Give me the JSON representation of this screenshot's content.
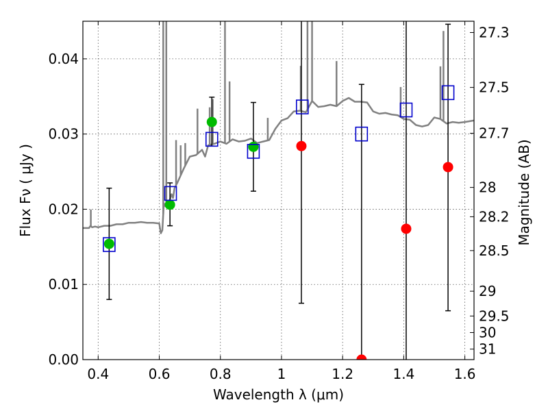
{
  "chart_data": {
    "type": "scatter",
    "title": "",
    "xlabel": "Wavelength  λ (μm)",
    "ylabel": "Flux  Fν  ( μJy )",
    "ylabel_right": "Magnitude (AB)",
    "xlim": [
      0.35,
      1.63
    ],
    "ylim": [
      0.0,
      0.045
    ],
    "grid": true,
    "x_ticks": [
      0.4,
      0.6,
      0.8,
      1.0,
      1.2,
      1.4,
      1.6
    ],
    "x_tick_labels": [
      "0.4",
      "0.6",
      "0.8",
      "1",
      "1.2",
      "1.4",
      "1.6"
    ],
    "y_ticks": [
      0.0,
      0.01,
      0.02,
      0.03,
      0.04
    ],
    "y_tick_labels": [
      "0.00",
      "0.01",
      "0.02",
      "0.03",
      "0.04"
    ],
    "right_ticks": [
      {
        "mag": "27.3",
        "flux": 0.0435
      },
      {
        "mag": "27.5",
        "flux": 0.0362
      },
      {
        "mag": "27.7",
        "flux": 0.0301
      },
      {
        "mag": "28",
        "flux": 0.0229
      },
      {
        "mag": "28.2",
        "flux": 0.019
      },
      {
        "mag": "28.5",
        "flux": 0.0145
      },
      {
        "mag": "29",
        "flux": 0.0091
      },
      {
        "mag": "29.5",
        "flux": 0.0058
      },
      {
        "mag": "30",
        "flux": 0.0036
      },
      {
        "mag": "31",
        "flux": 0.0014
      }
    ],
    "series": [
      {
        "kind": "line",
        "color": "#808080",
        "x": [
          0.35,
          0.37,
          0.375,
          0.38,
          0.39,
          0.4,
          0.42,
          0.44,
          0.46,
          0.48,
          0.5,
          0.52,
          0.54,
          0.56,
          0.58,
          0.6,
          0.605,
          0.61,
          0.615,
          0.62,
          0.63,
          0.64,
          0.645,
          0.65,
          0.66,
          0.68,
          0.7,
          0.72,
          0.74,
          0.75,
          0.76,
          0.78,
          0.8,
          0.82,
          0.84,
          0.86,
          0.88,
          0.9,
          0.92,
          0.94,
          0.96,
          0.98,
          1.0,
          1.02,
          1.04,
          1.06,
          1.08,
          1.1,
          1.12,
          1.14,
          1.16,
          1.18,
          1.2,
          1.22,
          1.24,
          1.26,
          1.28,
          1.3,
          1.32,
          1.34,
          1.36,
          1.38,
          1.4,
          1.42,
          1.44,
          1.46,
          1.48,
          1.5,
          1.52,
          1.54,
          1.56,
          1.58,
          1.6,
          1.63
        ],
        "y": [
          0.0175,
          0.0175,
          0.0178,
          0.0176,
          0.0177,
          0.0176,
          0.0178,
          0.0178,
          0.018,
          0.018,
          0.0182,
          0.0182,
          0.0183,
          0.0182,
          0.0182,
          0.0181,
          0.0168,
          0.0172,
          0.0208,
          0.0204,
          0.0206,
          0.022,
          0.0215,
          0.0228,
          0.0236,
          0.0254,
          0.027,
          0.0272,
          0.0279,
          0.027,
          0.0285,
          0.0287,
          0.029,
          0.0287,
          0.0293,
          0.029,
          0.0291,
          0.0294,
          0.0288,
          0.029,
          0.0292,
          0.0307,
          0.0318,
          0.0321,
          0.033,
          0.0331,
          0.0329,
          0.0344,
          0.0336,
          0.0337,
          0.0339,
          0.0337,
          0.0344,
          0.0348,
          0.0343,
          0.0343,
          0.0342,
          0.033,
          0.0327,
          0.0328,
          0.0326,
          0.0325,
          0.032,
          0.0319,
          0.0312,
          0.031,
          0.0312,
          0.0322,
          0.032,
          0.0314,
          0.0316,
          0.0315,
          0.0316,
          0.0318
        ]
      },
      {
        "kind": "line_spikes",
        "color": "#808080",
        "spikes": [
          [
            0.376,
            0.0022
          ],
          [
            0.613,
            0.046
          ],
          [
            0.623,
            0.046
          ],
          [
            0.655,
            0.006
          ],
          [
            0.67,
            0.004
          ],
          [
            0.685,
            0.003
          ],
          [
            0.725,
            0.006
          ],
          [
            0.765,
            0.005
          ],
          [
            0.775,
            0.006
          ],
          [
            0.815,
            0.046
          ],
          [
            0.83,
            0.008
          ],
          [
            0.955,
            0.003
          ],
          [
            1.063,
            0.006
          ],
          [
            1.085,
            0.012
          ],
          [
            1.1,
            0.012
          ],
          [
            1.18,
            0.006
          ],
          [
            1.39,
            0.004
          ],
          [
            1.52,
            0.007
          ],
          [
            1.53,
            0.012
          ]
        ]
      },
      {
        "kind": "errorbar",
        "color": "#000000",
        "x": [
          0.436,
          0.635,
          0.772,
          0.908,
          1.065,
          1.262,
          1.408,
          1.545
        ],
        "y": [
          0.0154,
          0.0206,
          0.0316,
          0.0283,
          0.0284,
          0.0002,
          0.0174,
          0.0256
        ],
        "err_low": [
          0.008,
          0.0178,
          0.0284,
          0.0224,
          0.0075,
          0.0,
          null,
          0.0065
        ],
        "err_high": [
          0.0228,
          0.0235,
          0.0349,
          0.0342,
          0.046,
          0.0366,
          0.046,
          0.0446
        ]
      },
      {
        "kind": "scatter",
        "marker": "circle",
        "color": "#00bb00",
        "x": [
          0.436,
          0.635,
          0.772,
          0.908
        ],
        "y": [
          0.0154,
          0.0206,
          0.0316,
          0.0283
        ]
      },
      {
        "kind": "scatter",
        "marker": "circle",
        "color": "#ff0000",
        "x": [
          1.065,
          1.262,
          1.408,
          1.545
        ],
        "y": [
          0.0284,
          0.0,
          0.0174,
          0.0256
        ]
      },
      {
        "kind": "scatter",
        "marker": "open-square",
        "color": "#0000cc",
        "x": [
          0.436,
          0.637,
          0.772,
          0.908,
          1.068,
          1.262,
          1.408,
          1.545
        ],
        "y": [
          0.0153,
          0.0221,
          0.0293,
          0.0277,
          0.0336,
          0.03,
          0.0332,
          0.0355
        ]
      }
    ]
  }
}
